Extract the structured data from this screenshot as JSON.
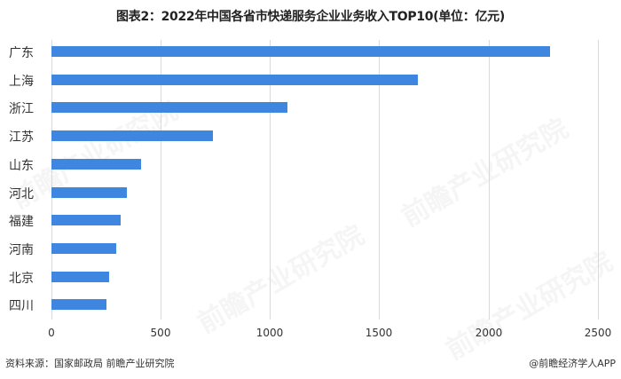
{
  "title": "图表2：2022年中国各省市快递服务企业业务收入TOP10(单位：亿元)",
  "source": "资料来源：国家邮政局 前瞻产业研究院",
  "credit": "@前瞻经济学人APP",
  "watermark": "前瞻产业研究院",
  "colors": {
    "bar": "#3f86e0",
    "grid": "#d9d9d9"
  },
  "axis": {
    "ticks": [
      "0",
      "500",
      "1000",
      "1500",
      "2000",
      "2500"
    ]
  },
  "categories": {
    "c0": "广东",
    "c1": "上海",
    "c2": "浙江",
    "c3": "江苏",
    "c4": "山东",
    "c5": "河北",
    "c6": "福建",
    "c7": "河南",
    "c8": "北京",
    "c9": "四川"
  },
  "chart_data": {
    "type": "bar",
    "orientation": "horizontal",
    "title": "图表2：2022年中国各省市快递服务企业业务收入TOP10(单位：亿元)",
    "categories": [
      "广东",
      "上海",
      "浙江",
      "江苏",
      "山东",
      "河北",
      "福建",
      "河南",
      "北京",
      "四川"
    ],
    "values": [
      2280,
      1675,
      1079,
      738,
      410,
      345,
      316,
      296,
      264,
      251
    ],
    "xlabel": "",
    "ylabel": "",
    "xlim": [
      0,
      2500
    ],
    "xticks": [
      0,
      500,
      1000,
      1500,
      2000,
      2500
    ],
    "grid": "vertical",
    "legend": "none",
    "unit": "亿元",
    "source": "资料来源：国家邮政局 前瞻产业研究院"
  }
}
